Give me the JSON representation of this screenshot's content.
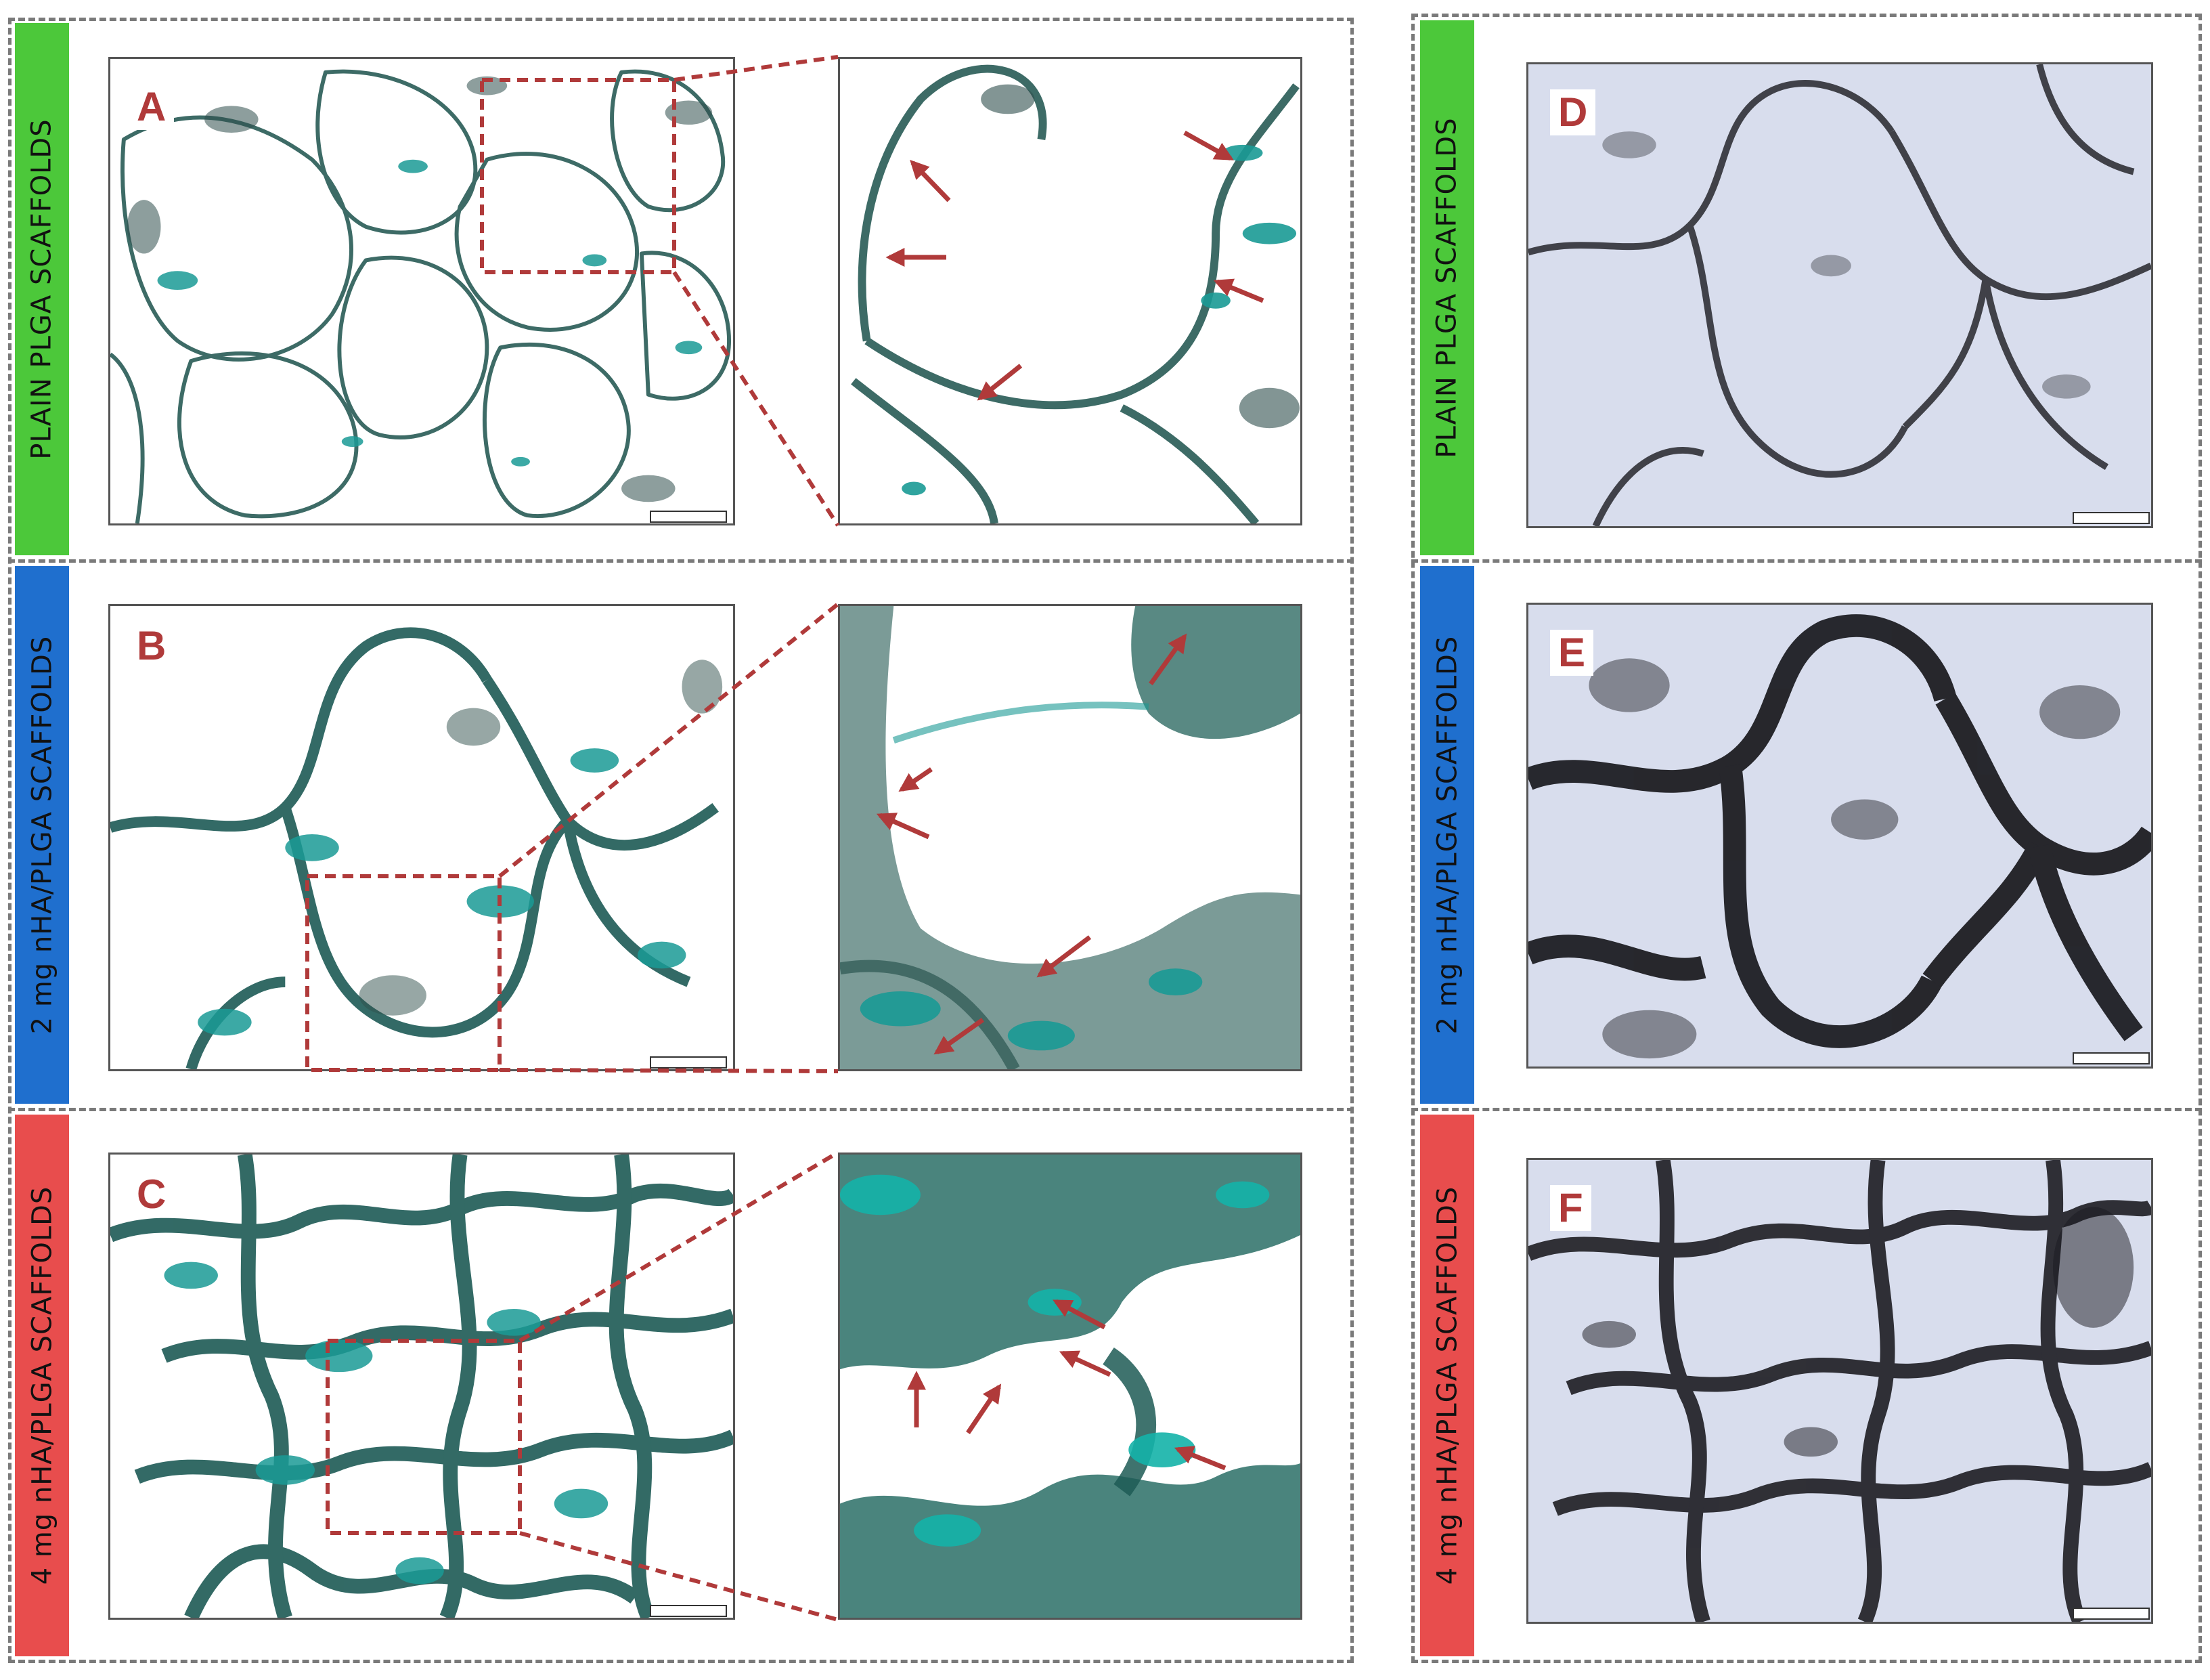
{
  "rows": [
    {
      "label": "PLAIN PLGA SCAFFOLDS",
      "color": "#4cc83a"
    },
    {
      "label": "2 mg nHA/PLGA SCAFFOLDS",
      "color": "#1f6fce"
    },
    {
      "label": "4 mg nHA/PLGA SCAFFOLDS",
      "color": "#e84d4d"
    }
  ],
  "panels": {
    "A": "A",
    "B": "B",
    "C": "C",
    "D": "D",
    "E": "E",
    "F": "F"
  },
  "stain_colors": {
    "alcian_blue": "#1a9a95",
    "dark_teal": "#1d5a55",
    "brightfield_bg": "#d6dced",
    "scaffold_dark": "#1a1a1f",
    "annotation_red": "#b03a3a"
  }
}
